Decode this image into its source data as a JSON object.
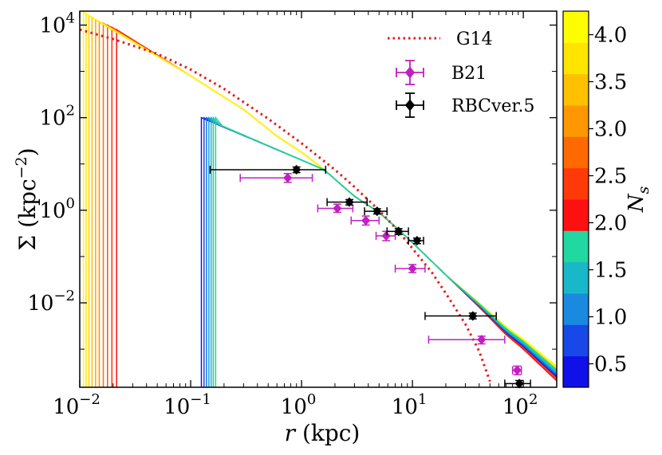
{
  "chart_data": {
    "type": "line",
    "xscale": "log",
    "yscale": "log",
    "xlim": [
      0.01,
      200
    ],
    "ylim": [
      0.00015,
      20000
    ],
    "xlabel": "r (kpc)",
    "xlabel_parts": {
      "var": "r",
      "unit": "(kpc)"
    },
    "ylabel": "Σ (kpc⁻²)",
    "ylabel_parts": {
      "var": "Σ",
      "unit_open": "(kpc",
      "unit_exp": "−2",
      "unit_close": ")"
    },
    "x_ticks": [
      {
        "value": 0.01,
        "base": "10",
        "exp": "−2"
      },
      {
        "value": 0.1,
        "base": "10",
        "exp": "−1"
      },
      {
        "value": 1,
        "base": "10",
        "exp": "0"
      },
      {
        "value": 10,
        "base": "10",
        "exp": "1"
      },
      {
        "value": 100,
        "base": "10",
        "exp": "2"
      }
    ],
    "y_ticks": [
      {
        "value": 0.01,
        "base": "10",
        "exp": "−2"
      },
      {
        "value": 1,
        "base": "10",
        "exp": "0"
      },
      {
        "value": 100,
        "base": "10",
        "exp": "2"
      },
      {
        "value": 10000,
        "base": "10",
        "exp": "4"
      }
    ],
    "legend": {
      "placement": "top-right",
      "entries": [
        {
          "label": "G14",
          "style": "dotted",
          "color": "#e8161a"
        },
        {
          "label": "B21",
          "style": "errorbar",
          "color": "#c020c0"
        },
        {
          "label": "RBCver.5",
          "style": "errorbar",
          "color": "#000000"
        }
      ]
    },
    "colorbar": {
      "label": "N",
      "label_sub": "s",
      "range": [
        0.25,
        4.25
      ],
      "ticks": [
        "0.5",
        "1.0",
        "1.5",
        "2.0",
        "2.5",
        "3.0",
        "3.5",
        "4.0"
      ],
      "tick_values": [
        0.5,
        1.0,
        1.5,
        2.0,
        2.5,
        3.0,
        3.5,
        4.0
      ],
      "segments": [
        "#1010e8",
        "#1848e8",
        "#1a8ae0",
        "#18b8c8",
        "#20d8a0",
        "#ff1010",
        "#ff3a08",
        "#ff6a00",
        "#ff9800",
        "#ffc000",
        "#ffe400",
        "#fffe00"
      ]
    },
    "series": [
      {
        "name": "G14",
        "color": "#e8161a",
        "style": "dotted",
        "x": [
          0.01,
          0.02,
          0.05,
          0.1,
          0.2,
          0.5,
          1,
          2,
          3,
          5,
          7,
          10,
          15,
          20,
          30,
          40,
          50
        ],
        "y": [
          8000,
          5000,
          2400,
          1100,
          420,
          95,
          28,
          7.5,
          3.2,
          1.0,
          0.42,
          0.15,
          0.045,
          0.016,
          0.0035,
          0.0009,
          0.0002
        ]
      },
      {
        "name": "B21",
        "color": "#c020c0",
        "points": [
          {
            "x": 0.75,
            "y": 5.0,
            "xerr": [
              0.28,
              1.25
            ],
            "yerr": [
              4.0,
              6.2
            ]
          },
          {
            "x": 2.1,
            "y": 1.1,
            "xerr": [
              1.4,
              2.9
            ],
            "yerr": [
              0.9,
              1.35
            ]
          },
          {
            "x": 3.8,
            "y": 0.6,
            "xerr": [
              2.8,
              5.0
            ],
            "yerr": [
              0.48,
              0.75
            ]
          },
          {
            "x": 5.8,
            "y": 0.28,
            "xerr": [
              4.7,
              7.0
            ],
            "yerr": [
              0.22,
              0.35
            ]
          },
          {
            "x": 10.0,
            "y": 0.055,
            "xerr": [
              7.0,
              13.0
            ],
            "yerr": [
              0.045,
              0.067
            ]
          },
          {
            "x": 42.0,
            "y": 0.0016,
            "xerr": [
              14.0,
              68.0
            ],
            "yerr": [
              0.0013,
              0.0019
            ]
          },
          {
            "x": 88.0,
            "y": 0.00035,
            "xerr": [
              80.0,
              96.0
            ],
            "yerr": [
              0.00028,
              0.00043
            ]
          }
        ]
      },
      {
        "name": "RBCver.5",
        "color": "#000000",
        "points": [
          {
            "x": 0.9,
            "y": 7.5,
            "xerr": [
              0.15,
              1.65
            ],
            "yerr": [
              6.5,
              8.6
            ]
          },
          {
            "x": 2.7,
            "y": 1.5,
            "xerr": [
              1.7,
              3.9
            ],
            "yerr": [
              1.3,
              1.7
            ]
          },
          {
            "x": 4.8,
            "y": 0.95,
            "xerr": [
              3.7,
              5.9
            ],
            "yerr": [
              0.83,
              1.08
            ]
          },
          {
            "x": 7.5,
            "y": 0.35,
            "xerr": [
              5.9,
              9.2
            ],
            "yerr": [
              0.3,
              0.4
            ]
          },
          {
            "x": 11.0,
            "y": 0.22,
            "xerr": [
              9.2,
              12.6
            ],
            "yerr": [
              0.19,
              0.25
            ]
          },
          {
            "x": 35.0,
            "y": 0.0052,
            "xerr": [
              13.0,
              57.0
            ],
            "yerr": [
              0.0045,
              0.006
            ]
          },
          {
            "x": 92.0,
            "y": 0.00018,
            "xerr": [
              68.0,
              116.0
            ],
            "yerr": [
              0.00015,
              0.00021
            ]
          }
        ]
      }
    ],
    "model_curves": {
      "description_values": "Ns from 0.5 to 4.0",
      "inner_family": {
        "ns_values": [
          1.0,
          1.1,
          1.2,
          1.3,
          1.4,
          1.5,
          1.6
        ],
        "colors": [
          "#1010e8",
          "#1848e8",
          "#1a70e0",
          "#1a98d8",
          "#18b8c8",
          "#20cca8",
          "#20d890"
        ],
        "x_start": [
          0.125,
          0.132,
          0.139,
          0.146,
          0.153,
          0.16,
          0.168
        ],
        "y_peak": 100
      },
      "outer_family": {
        "ns_values": [
          2.2,
          2.4,
          2.6,
          2.8,
          3.0,
          3.2,
          3.4,
          3.6,
          3.8,
          4.0
        ],
        "colors": [
          "#ff1010",
          "#ff3008",
          "#ff5004",
          "#ff6e00",
          "#ff8a00",
          "#ffa400",
          "#ffbc00",
          "#ffd200",
          "#ffe800",
          "#fffc00"
        ],
        "x_start": [
          0.0215,
          0.0195,
          0.0178,
          0.0163,
          0.015,
          0.0139,
          0.0129,
          0.0121,
          0.0114,
          0.0108
        ],
        "y_peak": [
          8000,
          9000,
          10000,
          11000,
          12000,
          13000,
          14500,
          16000,
          17500,
          19000
        ]
      },
      "shared_track": {
        "x": [
          0.1,
          0.3,
          0.6,
          1.0,
          1.6,
          3.0,
          5.0,
          7.5,
          10,
          20,
          40,
          70,
          100,
          200
        ],
        "y": [
          800,
          150,
          40,
          18,
          7.5,
          2.0,
          0.9,
          0.38,
          0.2,
          0.04,
          0.009,
          0.0025,
          0.0013,
          0.0003
        ]
      }
    }
  }
}
